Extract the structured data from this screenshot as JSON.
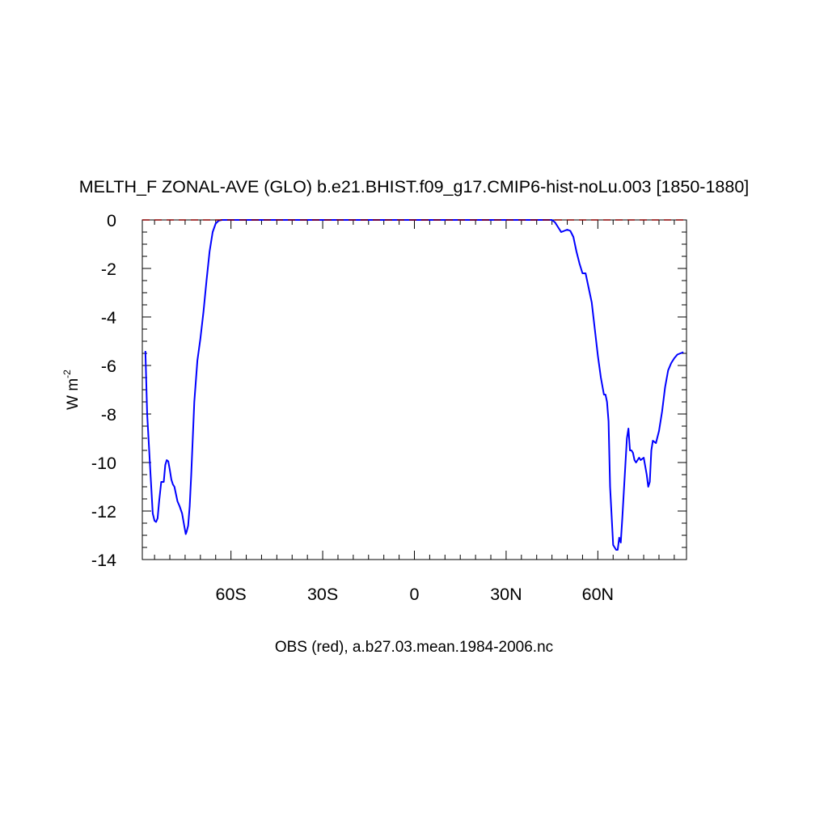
{
  "chart_data": {
    "type": "line",
    "title": "MELTH_F ZONAL-AVE (GLO) b.e21.BHIST.f09_g17.CMIP6-hist-noLu.003 [1850-1880]",
    "subtitle": "OBS (red), a.b27.03.mean.1984-2006.nc",
    "xlabel": "",
    "ylabel": "W m",
    "ylabel_superscript": "-2",
    "xlim": [
      -89,
      89
    ],
    "ylim": [
      -14,
      0
    ],
    "xticks": [
      -60,
      -30,
      0,
      30,
      60
    ],
    "xtick_labels": [
      "60S",
      "30S",
      "0",
      "30N",
      "60N"
    ],
    "yticks": [
      0,
      -2,
      -4,
      -6,
      -8,
      -10,
      -12,
      -14
    ],
    "ytick_labels": [
      "0",
      "-2",
      "-4",
      "-6",
      "-8",
      "-10",
      "-12",
      "-14"
    ],
    "grid": false,
    "series": [
      {
        "color": "#0000ff",
        "style": "solid",
        "x": [
          -88,
          -87.4,
          -86.5,
          -85.6,
          -85,
          -84.5,
          -84,
          -83.5,
          -82.8,
          -82,
          -81.5,
          -81,
          -80.5,
          -80,
          -79.5,
          -79,
          -78.5,
          -78,
          -77.5,
          -76.8,
          -76,
          -75.3,
          -74.8,
          -74.5,
          -74,
          -73.5,
          -73,
          -72.5,
          -72,
          -71,
          -70,
          -69,
          -68,
          -67,
          -66,
          -65,
          -64,
          -63,
          -62,
          -61,
          -60,
          -59,
          -58,
          -57,
          -56,
          -55,
          -54.5,
          -54,
          -53.5,
          -53,
          -52,
          -51,
          -50,
          -45,
          -30,
          0,
          30,
          44,
          45,
          46,
          47,
          48,
          49,
          50,
          51,
          52,
          53,
          54,
          55,
          56,
          57,
          58,
          59,
          60,
          61,
          62,
          62.5,
          63,
          63.5,
          64,
          65,
          66,
          66.5,
          67,
          67.5,
          68,
          69,
          69.5,
          70,
          70.5,
          71,
          71.5,
          72,
          72.5,
          73,
          73.5,
          74,
          75,
          76,
          76.5,
          77,
          77.5,
          78,
          79,
          80,
          81,
          82,
          83,
          84,
          85,
          86,
          87,
          88
        ],
        "y": [
          -5.4,
          -8.0,
          -10.1,
          -12.1,
          -12.4,
          -12.45,
          -12.3,
          -11.6,
          -10.8,
          -10.8,
          -10.1,
          -9.9,
          -9.95,
          -10.3,
          -10.7,
          -10.9,
          -11.0,
          -11.3,
          -11.6,
          -11.8,
          -12.1,
          -12.6,
          -12.95,
          -12.85,
          -12.6,
          -11.8,
          -10.5,
          -9.0,
          -7.5,
          -5.8,
          -4.9,
          -3.8,
          -2.5,
          -1.3,
          -0.5,
          -0.15,
          -0.03,
          0,
          0,
          0,
          0,
          0,
          0,
          0,
          0,
          0,
          0,
          0,
          0,
          0,
          0,
          0,
          0,
          0,
          0,
          0,
          0,
          0,
          0,
          -0.1,
          -0.3,
          -0.5,
          -0.45,
          -0.4,
          -0.45,
          -0.7,
          -1.3,
          -1.8,
          -2.2,
          -2.2,
          -2.8,
          -3.4,
          -4.5,
          -5.6,
          -6.5,
          -7.2,
          -7.2,
          -7.5,
          -8.3,
          -11.0,
          -13.4,
          -13.6,
          -13.6,
          -13.1,
          -13.3,
          -12.3,
          -10.1,
          -9.0,
          -8.6,
          -9.5,
          -9.5,
          -9.6,
          -9.9,
          -10.0,
          -9.9,
          -9.8,
          -9.9,
          -9.8,
          -10.5,
          -11.0,
          -10.8,
          -9.5,
          -9.1,
          -9.2,
          -8.7,
          -7.9,
          -6.9,
          -6.2,
          -5.9,
          -5.7,
          -5.55,
          -5.5,
          -5.45
        ]
      },
      {
        "color": "#8b0000",
        "style": "dashed",
        "x": [
          -89,
          89
        ],
        "y": [
          0,
          0
        ]
      }
    ]
  }
}
